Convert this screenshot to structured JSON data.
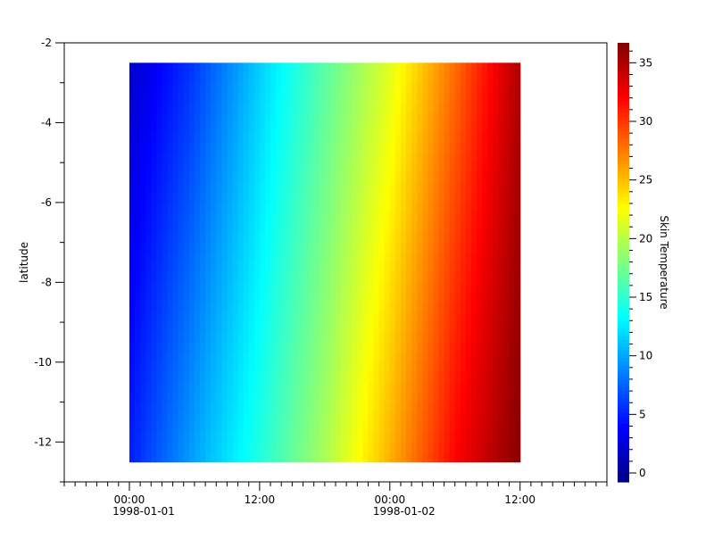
{
  "chart_data": {
    "type": "heatmap",
    "title": "",
    "xlabel": "",
    "ylabel": "latitude",
    "colorbar_label": "Skin Temperature",
    "colormap": "jet",
    "x_hours_from": "1998-01-01 00:00",
    "xlim_hours": [
      -6,
      44
    ],
    "ylim": [
      -13,
      -2
    ],
    "clim": [
      -0.76,
      36.7
    ],
    "x_ticks": [
      {
        "hours": 0,
        "label": "00:00",
        "date": "1998-01-01"
      },
      {
        "hours": 12,
        "label": "12:00",
        "date": ""
      },
      {
        "hours": 24,
        "label": "00:00",
        "date": "1998-01-02"
      },
      {
        "hours": 36,
        "label": "12:00",
        "date": ""
      }
    ],
    "y_ticks": [
      -2,
      -4,
      -6,
      -8,
      -10,
      -12
    ],
    "colorbar_ticks": [
      0,
      5,
      10,
      15,
      20,
      25,
      30,
      35
    ],
    "time_hours": [
      0,
      6,
      12,
      18,
      24,
      30,
      36
    ],
    "latitude": [
      -2.5,
      -12.5
    ],
    "values": [
      [
        2,
        6,
        11.5,
        16.5,
        21.5,
        28,
        35
      ],
      [
        5,
        10,
        14.5,
        19.5,
        25.5,
        32,
        36.5
      ]
    ]
  }
}
